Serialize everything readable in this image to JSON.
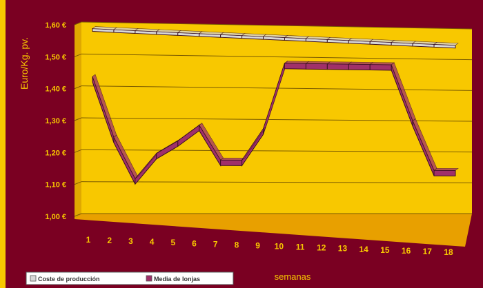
{
  "chart_data": {
    "type": "line",
    "subtype": "3d-ribbon",
    "ylabel": "Euro/Kg. pv.",
    "xlabel": "semanas",
    "ylim": [
      1.0,
      1.6
    ],
    "yticks": [
      "1,00 €",
      "1,10 €",
      "1,20 €",
      "1,30 €",
      "1,40 €",
      "1,50 €",
      "1,60 €"
    ],
    "categories": [
      "1",
      "2",
      "3",
      "4",
      "5",
      "6",
      "7",
      "8",
      "9",
      "10",
      "11",
      "12",
      "13",
      "14",
      "15",
      "16",
      "17",
      "18"
    ],
    "series": [
      {
        "name": "Coste de producción",
        "values": [
          1.58,
          1.578,
          1.576,
          1.574,
          1.572,
          1.57,
          1.568,
          1.566,
          1.564,
          1.562,
          1.56,
          1.558,
          1.556,
          1.554,
          1.552,
          1.55,
          1.548,
          1.546
        ]
      },
      {
        "name": "Media de lonjas",
        "values": [
          1.43,
          1.24,
          1.11,
          1.19,
          1.23,
          1.28,
          1.17,
          1.17,
          1.27,
          1.48,
          1.48,
          1.48,
          1.48,
          1.48,
          1.48,
          1.3,
          1.14,
          1.14
        ]
      }
    ],
    "grid": true,
    "legend": "bottom-left",
    "colors": {
      "background": "#7a0022",
      "wall": "#f8c800",
      "floor": "#e8a000",
      "axis_text": "#f8c800",
      "coste": "#d8d8d8",
      "media": "#a0306a"
    }
  }
}
